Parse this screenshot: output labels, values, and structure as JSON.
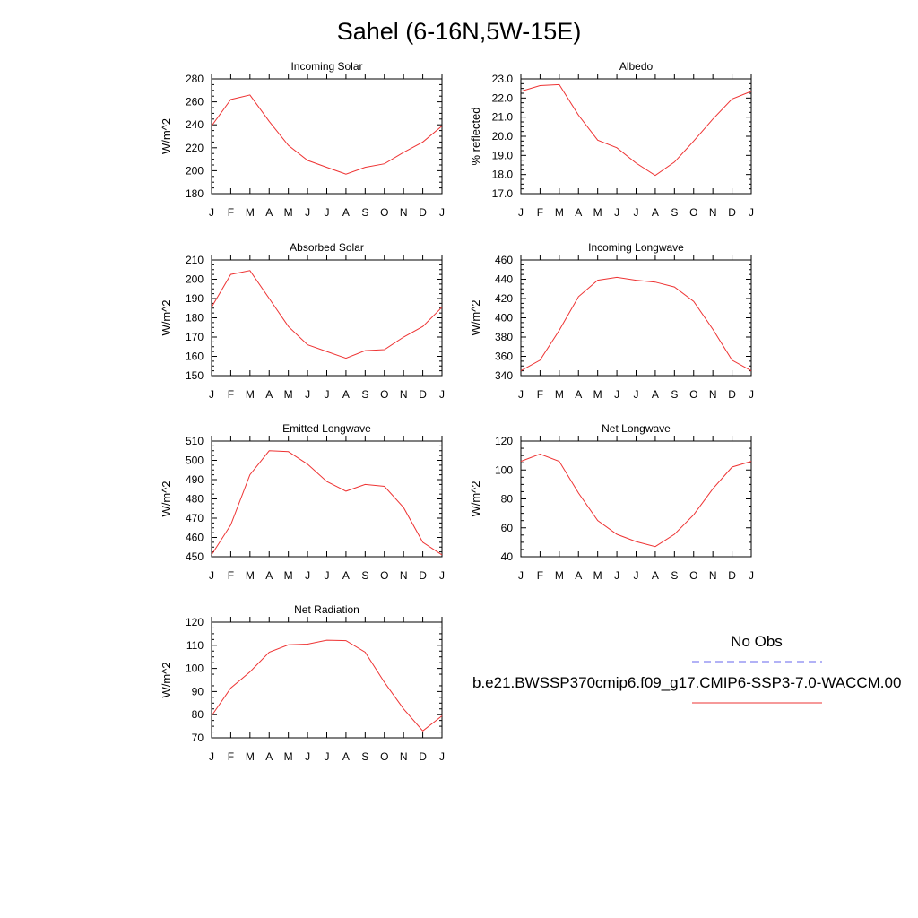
{
  "title": "Sahel (6-16N,5W-15E)",
  "months": [
    "J",
    "F",
    "M",
    "A",
    "M",
    "J",
    "J",
    "A",
    "S",
    "O",
    "N",
    "D",
    "J"
  ],
  "legend": {
    "obs_label": "No Obs",
    "obs_color": "#6666ee",
    "model_label": "b.e21.BWSSP370cmip6.f09_g17.CMIP6-SSP3-7.0-WACCM.00",
    "model_color": "#ee3333"
  },
  "chart_data": [
    {
      "type": "line",
      "title": "Incoming Solar",
      "ylabel": "W/m^2",
      "ylim": [
        180,
        280
      ],
      "yticks": [
        "180",
        "200",
        "220",
        "240",
        "260",
        "280"
      ],
      "series": [
        {
          "values": [
            239,
            262,
            266,
            243,
            222,
            209,
            203,
            197,
            203,
            206,
            216,
            225,
            239
          ]
        }
      ]
    },
    {
      "type": "line",
      "title": "Albedo",
      "ylabel": "% reflected",
      "ylim": [
        17.0,
        23.0
      ],
      "yticks": [
        "17.0",
        "18.0",
        "19.0",
        "20.0",
        "21.0",
        "22.0",
        "23.0"
      ],
      "series": [
        {
          "values": [
            22.35,
            22.65,
            22.7,
            21.1,
            19.8,
            19.4,
            18.6,
            17.95,
            18.65,
            19.75,
            20.9,
            21.95,
            22.35
          ]
        }
      ]
    },
    {
      "type": "line",
      "title": "Absorbed Solar",
      "ylabel": "W/m^2",
      "ylim": [
        150,
        210
      ],
      "yticks": [
        "150",
        "160",
        "170",
        "180",
        "190",
        "200",
        "210"
      ],
      "series": [
        {
          "values": [
            185.5,
            202.5,
            204.5,
            190,
            175.5,
            166,
            162.5,
            159,
            163,
            163.5,
            170,
            175.5,
            185.5
          ]
        }
      ]
    },
    {
      "type": "line",
      "title": "Incoming Longwave",
      "ylabel": "W/m^2",
      "ylim": [
        340,
        460
      ],
      "yticks": [
        "340",
        "360",
        "380",
        "400",
        "420",
        "440",
        "460"
      ],
      "series": [
        {
          "values": [
            345,
            356,
            387,
            422,
            439,
            442,
            439,
            437,
            432,
            417,
            388,
            356,
            345
          ]
        }
      ]
    },
    {
      "type": "line",
      "title": "Emitted Longwave",
      "ylabel": "W/m^2",
      "ylim": [
        450,
        510
      ],
      "yticks": [
        "450",
        "460",
        "470",
        "480",
        "490",
        "500",
        "510"
      ],
      "series": [
        {
          "values": [
            451,
            466.5,
            492.5,
            505,
            504.5,
            498,
            489,
            484,
            487.5,
            486.5,
            475.5,
            457.5,
            451
          ]
        }
      ]
    },
    {
      "type": "line",
      "title": "Net Longwave",
      "ylabel": "W/m^2",
      "ylim": [
        40,
        120
      ],
      "yticks": [
        "40",
        "60",
        "80",
        "100",
        "120"
      ],
      "series": [
        {
          "values": [
            106,
            111,
            106,
            84,
            65,
            55.5,
            50.5,
            47,
            55.5,
            69,
            87,
            102,
            106
          ]
        }
      ]
    },
    {
      "type": "line",
      "title": "Net Radiation",
      "ylabel": "W/m^2",
      "ylim": [
        70,
        120
      ],
      "yticks": [
        "70",
        "80",
        "90",
        "100",
        "110",
        "120"
      ],
      "series": [
        {
          "values": [
            79.5,
            91.5,
            98.5,
            107,
            110.2,
            110.5,
            112.2,
            112,
            107,
            94,
            82.5,
            73,
            79.5
          ]
        }
      ]
    }
  ]
}
